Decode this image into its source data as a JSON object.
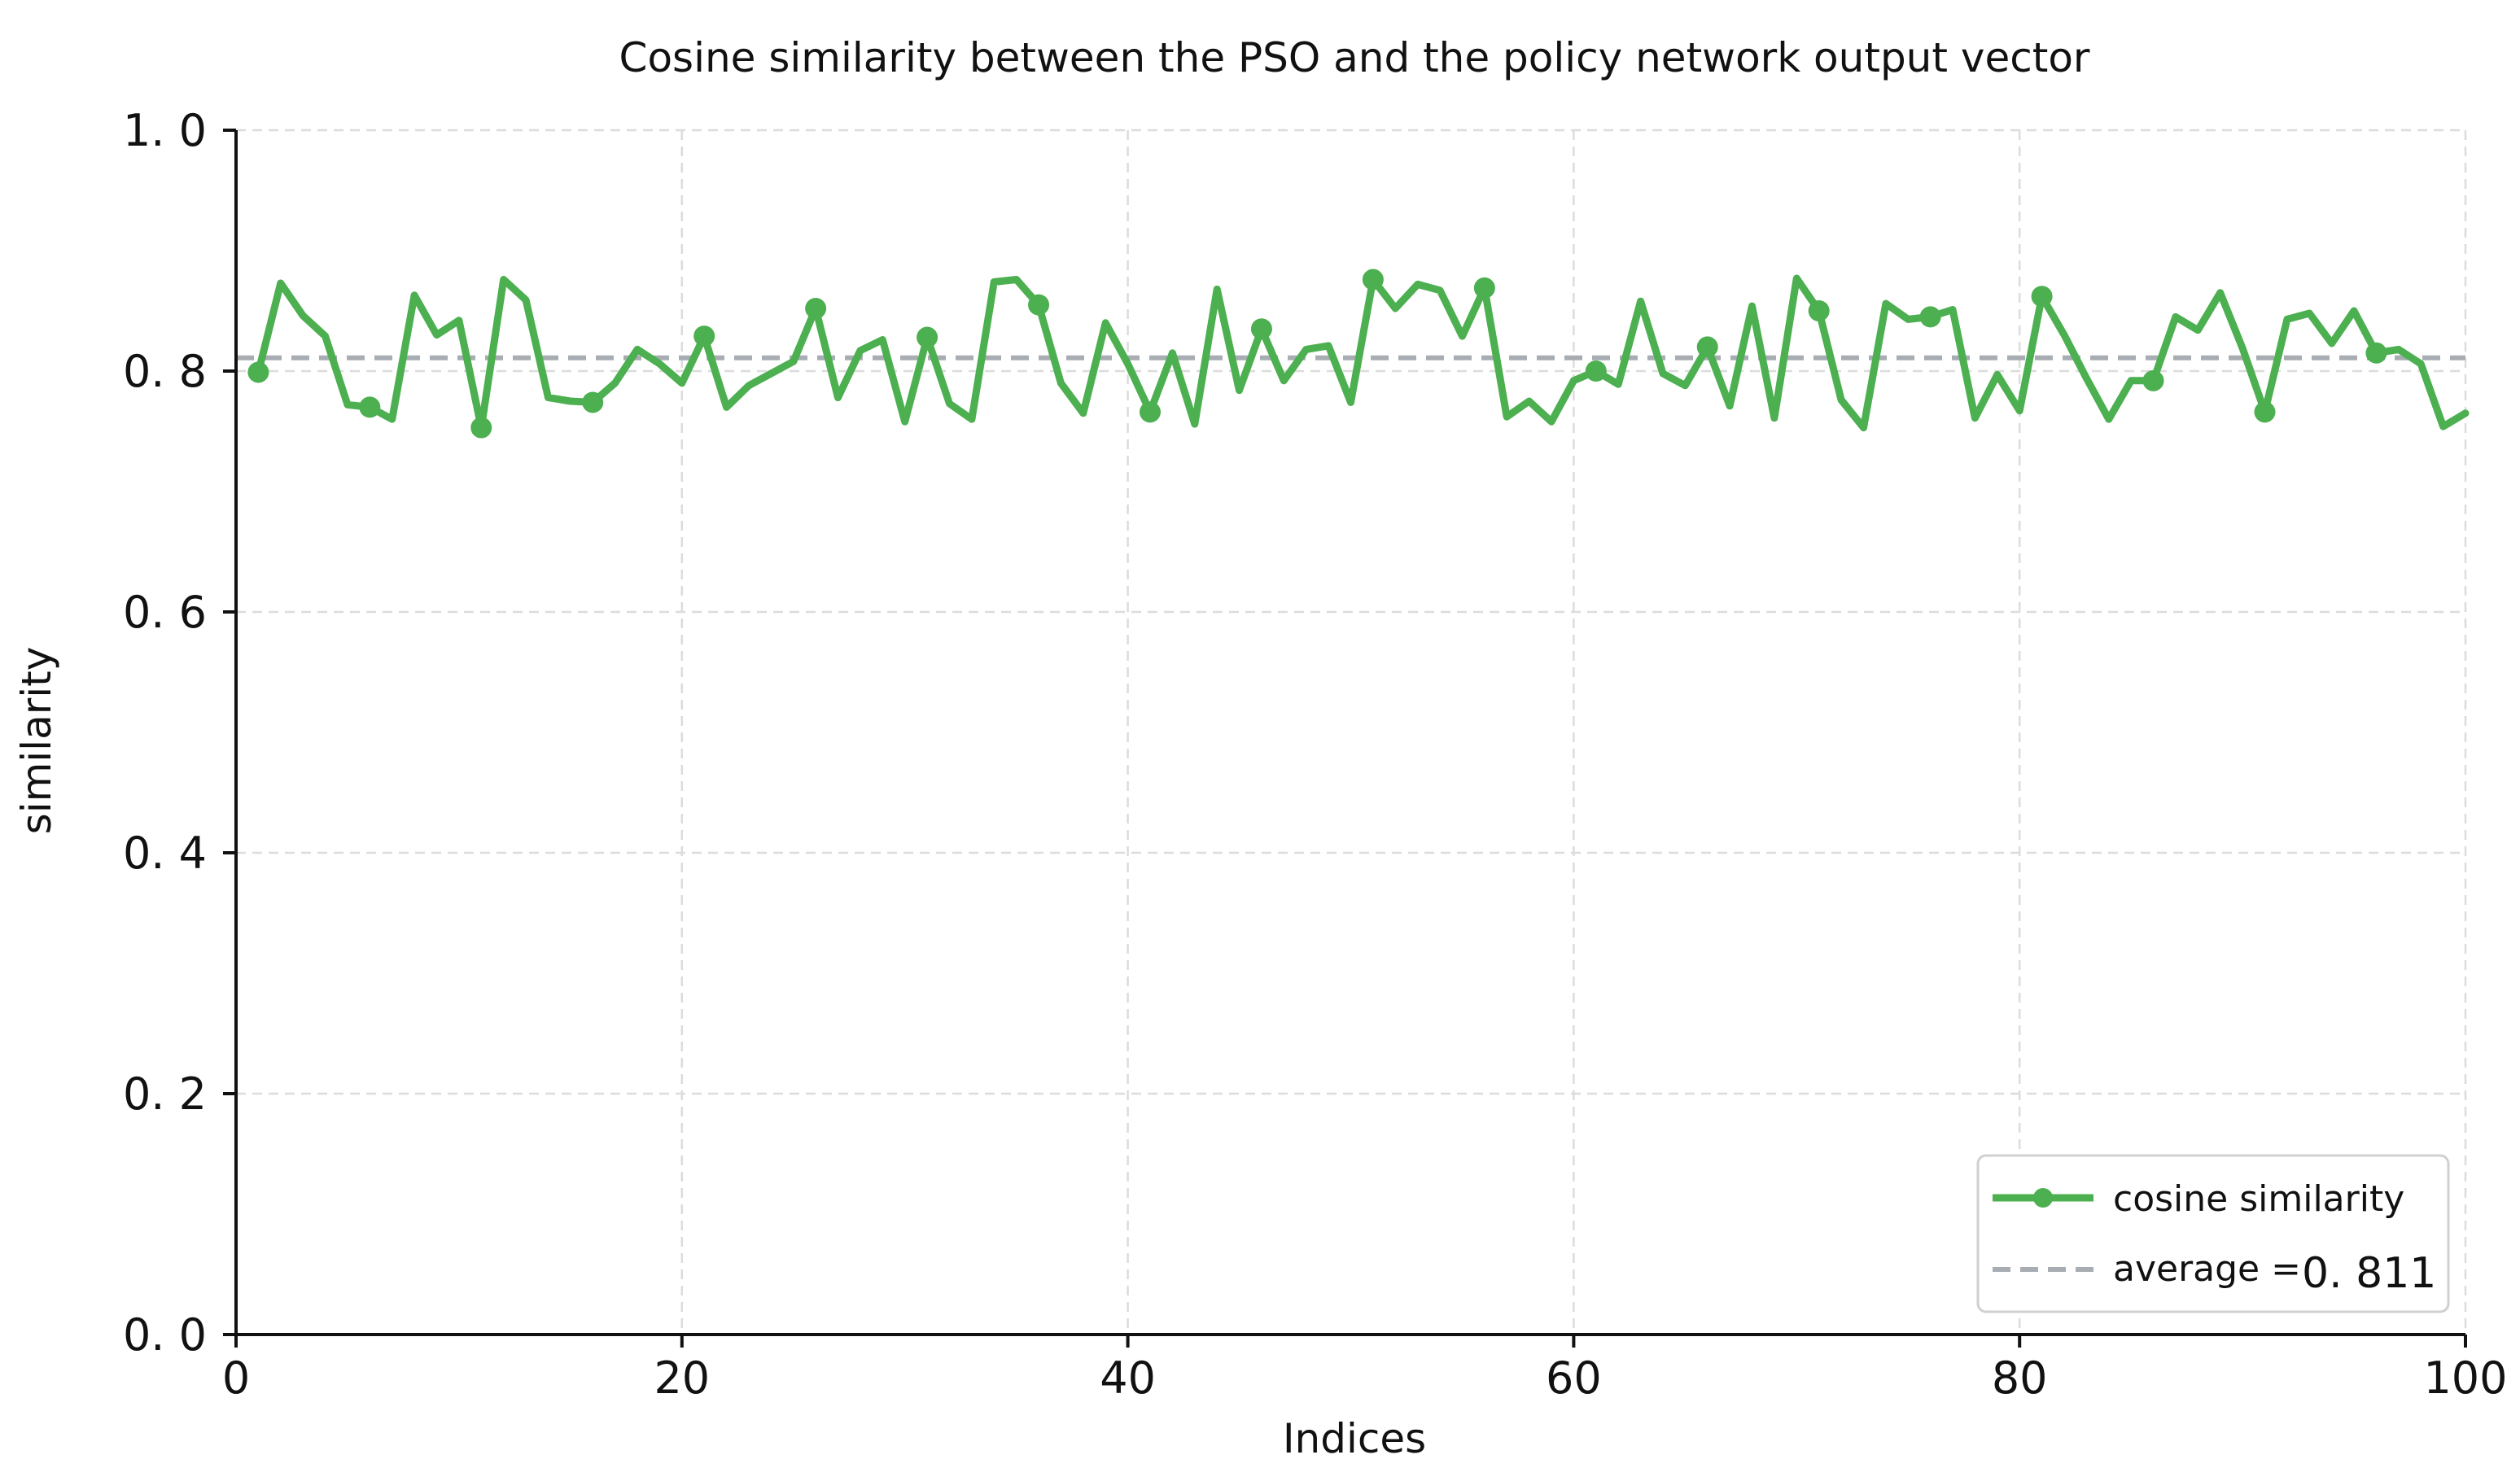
{
  "chart_data": {
    "type": "line",
    "title": "Cosine similarity between the PSO and the policy network output vector",
    "xlabel": "Indices",
    "ylabel": "similarity",
    "xlim": [
      0,
      100
    ],
    "ylim": [
      0.0,
      1.0
    ],
    "x_ticks": [
      0,
      20,
      40,
      60,
      80,
      100
    ],
    "x_tick_labels": [
      "0",
      "20",
      "40",
      "60",
      "80",
      "100"
    ],
    "y_ticks": [
      0.0,
      0.2,
      0.4,
      0.6,
      0.8,
      1.0
    ],
    "y_tick_labels": [
      "0. 0",
      "0. 2",
      "0. 4",
      "0. 6",
      "0. 8",
      "1. 0"
    ],
    "grid": true,
    "legend_position": "bottom-right",
    "series": [
      {
        "name": "cosine similarity",
        "color": "#4caf50",
        "marker_every": 5,
        "x": [
          1,
          2,
          3,
          4,
          5,
          6,
          7,
          8,
          9,
          10,
          11,
          12,
          13,
          14,
          15,
          16,
          17,
          18,
          19,
          20,
          21,
          22,
          23,
          24,
          25,
          26,
          27,
          28,
          29,
          30,
          31,
          32,
          33,
          34,
          35,
          36,
          37,
          38,
          39,
          40,
          41,
          42,
          43,
          44,
          45,
          46,
          47,
          48,
          49,
          50,
          51,
          52,
          53,
          54,
          55,
          56,
          57,
          58,
          59,
          60,
          61,
          62,
          63,
          64,
          65,
          66,
          67,
          68,
          69,
          70,
          71,
          72,
          73,
          74,
          75,
          76,
          77,
          78,
          79,
          80,
          81,
          82,
          83,
          84,
          85,
          86,
          87,
          88,
          89,
          90,
          91,
          92,
          93,
          94,
          95,
          96,
          97,
          98,
          99,
          100
        ],
        "values": [
          0.799,
          0.873,
          0.846,
          0.829,
          0.772,
          0.77,
          0.76,
          0.863,
          0.83,
          0.842,
          0.753,
          0.876,
          0.859,
          0.778,
          0.775,
          0.774,
          0.79,
          0.818,
          0.806,
          0.79,
          0.829,
          0.77,
          0.788,
          0.798,
          0.808,
          0.852,
          0.778,
          0.817,
          0.826,
          0.758,
          0.828,
          0.773,
          0.76,
          0.874,
          0.876,
          0.855,
          0.79,
          0.765,
          0.84,
          0.806,
          0.766,
          0.815,
          0.756,
          0.868,
          0.784,
          0.835,
          0.792,
          0.818,
          0.821,
          0.774,
          0.876,
          0.852,
          0.872,
          0.867,
          0.829,
          0.869,
          0.762,
          0.775,
          0.758,
          0.792,
          0.8,
          0.789,
          0.858,
          0.798,
          0.788,
          0.82,
          0.771,
          0.854,
          0.761,
          0.877,
          0.85,
          0.776,
          0.753,
          0.856,
          0.843,
          0.845,
          0.851,
          0.761,
          0.797,
          0.767,
          0.862,
          0.83,
          0.794,
          0.76,
          0.792,
          0.792,
          0.845,
          0.834,
          0.865,
          0.819,
          0.766,
          0.843,
          0.848,
          0.823,
          0.85,
          0.815,
          0.818,
          0.806,
          0.754,
          0.765
        ]
      },
      {
        "name": "average = 0.811",
        "color": "#a8adb3",
        "style": "dashed",
        "value": 0.811
      }
    ]
  },
  "legend": {
    "series_label": "cosine similarity",
    "average_label": "average =",
    "average_value": "0. 811"
  }
}
